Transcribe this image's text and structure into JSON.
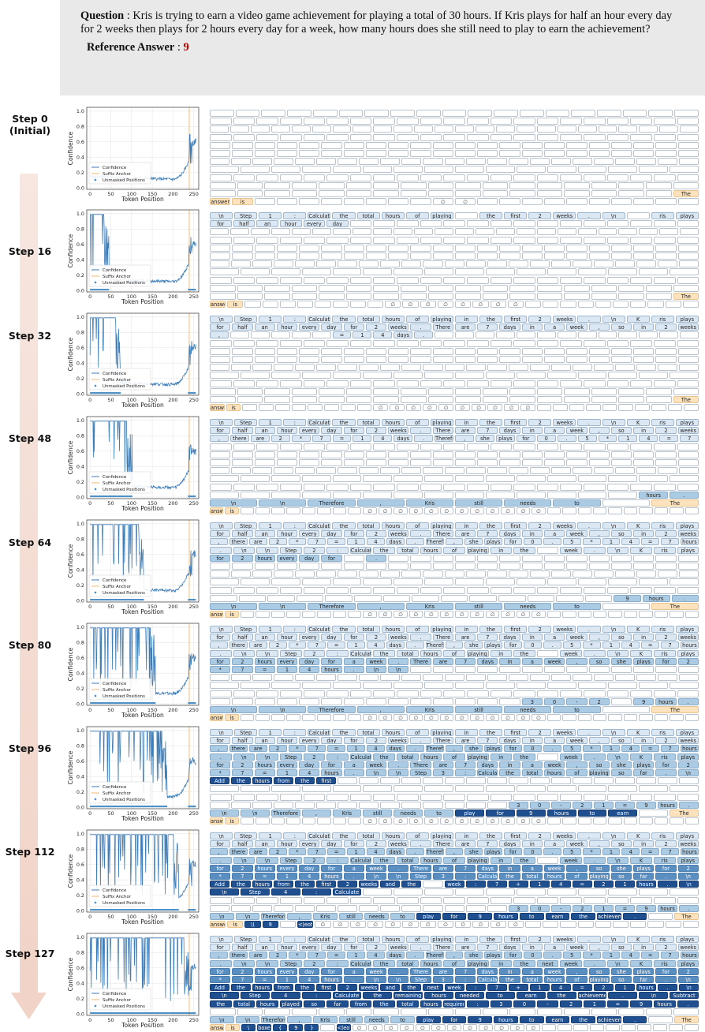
{
  "question": {
    "label": "Question",
    "text": "Kris is trying to earn a video game achievement  for playing a total of 30 hours. If Kris plays for half an hour every day for 2 weeks then plays for 2 hours every day for a week, how many hours does she still need to play to earn the achievement?",
    "reference_label": "Reference Answer",
    "reference_answer": "9"
  },
  "colors": {
    "confidence": "#3d7db8",
    "suffix_anchor": "#f2b774",
    "unmasked": "#4f90c6",
    "token_light": "#dbe7f2",
    "token_mid": "#aacbe3",
    "token_dark": "#1f4f8e",
    "anchor_token": "#fde3bd",
    "arrow": "#f3ddd4"
  },
  "axis": {
    "ylabel": "Confidence",
    "xlabel": "Token Position",
    "yticks": [
      "0.0",
      "0.2",
      "0.4",
      "0.6",
      "0.8",
      "1.0"
    ],
    "xticks": [
      "0",
      "50",
      "100",
      "150",
      "200",
      "250"
    ]
  },
  "legend": [
    "Confidence",
    "Suffix Anchor",
    "Unmasked Positions"
  ],
  "suffix": {
    "the": "The",
    "answer": "answer",
    "is": "is",
    "null": "∅"
  },
  "steps": [
    {
      "label": "Step 0\n(Initial)",
      "unmasked": 0,
      "committed_lines": [],
      "row10": [],
      "row11": []
    },
    {
      "label": "Step 16",
      "unmasked": 16,
      "committed_lines": [
        [
          "\\n",
          "Step",
          "1",
          ":",
          "Calculate",
          "the",
          "total",
          "hours",
          "of",
          "playing",
          "",
          "the",
          "first",
          "2",
          "weeks",
          ".",
          "\\n",
          "",
          "ris",
          "plays"
        ],
        [
          "for",
          "half",
          "an",
          "hour",
          "every",
          "day"
        ]
      ],
      "row10": [],
      "row11": []
    },
    {
      "label": "Step 32",
      "unmasked": 32,
      "committed_lines": [
        [
          "\\n",
          "Step",
          "1",
          ":",
          "Calculate",
          "the",
          "total",
          "hours",
          "of",
          "playing",
          "in",
          "the",
          "first",
          "2",
          "weeks",
          ".",
          "\\n",
          "K",
          "ris",
          "plays"
        ],
        [
          "for",
          "half",
          "an",
          "hour",
          "every",
          "day",
          "for",
          "2",
          "weeks",
          ".",
          "There",
          "are",
          "7",
          "days",
          "in",
          "a",
          "week",
          ",",
          "so",
          "in",
          "2",
          "weeks"
        ],
        [
          ",",
          "",
          "",
          "",
          "",
          "",
          "=",
          "1",
          "4",
          "days",
          "."
        ]
      ],
      "row10": [],
      "row11": []
    },
    {
      "label": "Step 48",
      "unmasked": 48,
      "committed_lines": [
        [
          "\\n",
          "Step",
          "1",
          ":",
          "Calculate",
          "the",
          "total",
          "hours",
          "of",
          "playing",
          "in",
          "the",
          "first",
          "2",
          "weeks",
          ".",
          "\\n",
          "K",
          "ris",
          "plays"
        ],
        [
          "for",
          "half",
          "an",
          "hour",
          "every",
          "day",
          "for",
          "2",
          "weeks",
          ".",
          "There",
          "are",
          "7",
          "days",
          "in",
          "a",
          "week",
          ",",
          "so",
          "in",
          "2",
          "weeks"
        ],
        [
          ",",
          "there",
          "are",
          "2",
          "*",
          "7",
          "=",
          "1",
          "4",
          "days",
          ".",
          "Therefore",
          ",",
          "she",
          "plays",
          "for",
          "0",
          ".",
          "5",
          "*",
          "1",
          "4",
          "=",
          "7"
        ]
      ],
      "row10": [
        "hours",
        "."
      ],
      "row11": [
        "\\n",
        "\\n",
        "Therefore",
        ",",
        "Kris",
        "still",
        "needs",
        "to"
      ]
    },
    {
      "label": "Step 64",
      "unmasked": 64,
      "committed_lines": [
        [
          "\\n",
          "Step",
          "1",
          ":",
          "Calculate",
          "the",
          "total",
          "hours",
          "of",
          "playing",
          "in",
          "the",
          "first",
          "2",
          "weeks",
          ".",
          "\\n",
          "K",
          "ris",
          "plays"
        ],
        [
          "for",
          "half",
          "an",
          "hour",
          "every",
          "day",
          "for",
          "2",
          "weeks",
          ".",
          "There",
          "are",
          "7",
          "days",
          "in",
          "a",
          "week",
          ",",
          "so",
          "in",
          "2",
          "weeks"
        ],
        [
          ",",
          "there",
          "are",
          "2",
          "*",
          "7",
          "=",
          "1",
          "4",
          "days",
          ".",
          "Therefore",
          ",",
          "she",
          "plays",
          "for",
          "0",
          ".",
          "5",
          "*",
          "1",
          "4",
          "=",
          "7",
          "hours"
        ],
        [
          ".",
          "\\n",
          "\\n",
          "Step",
          "2",
          ":",
          "Calculate",
          "the",
          "total",
          "hours",
          "of",
          "playing",
          "in",
          "the",
          "",
          "week",
          ".",
          "\\n",
          "K",
          "ris",
          "plays"
        ],
        [
          "for",
          "2",
          "hours",
          "every",
          "day",
          "for",
          "",
          "."
        ]
      ],
      "row10": [
        "9",
        "hours",
        "."
      ],
      "row11": [
        "\\n",
        "\\n",
        "Therefore",
        ",",
        "Kris",
        "still",
        "needs",
        "to"
      ]
    },
    {
      "label": "Step 80",
      "unmasked": 80,
      "committed_lines": [
        [
          "\\n",
          "Step",
          "1",
          ":",
          "Calculate",
          "the",
          "total",
          "hours",
          "of",
          "playing",
          "in",
          "the",
          "first",
          "2",
          "weeks",
          ".",
          "\\n",
          "K",
          "ris",
          "plays"
        ],
        [
          "for",
          "half",
          "an",
          "hour",
          "every",
          "day",
          "for",
          "2",
          "weeks",
          ".",
          "There",
          "are",
          "7",
          "days",
          "in",
          "a",
          "week",
          ",",
          "so",
          "in",
          "2",
          "weeks"
        ],
        [
          ",",
          "there",
          "are",
          "2",
          "*",
          "7",
          "=",
          "1",
          "4",
          "days",
          ".",
          "Therefore",
          ",",
          "she",
          "plays",
          "for",
          "0",
          ".",
          "5",
          "*",
          "1",
          "4",
          "=",
          "7",
          "hours"
        ],
        [
          ".",
          "\\n",
          "\\n",
          "Step",
          "2",
          ":",
          "Calculate",
          "the",
          "total",
          "hours",
          "of",
          "playing",
          "in",
          "the",
          "",
          "week",
          ".",
          "\\n",
          "K",
          "ris",
          "plays"
        ],
        [
          "for",
          "2",
          "hours",
          "every",
          "day",
          "for",
          "a",
          "week",
          ".",
          "There",
          "are",
          "7",
          "days",
          "in",
          "a",
          "week",
          ",",
          "so",
          "she",
          "plays",
          "for",
          "2"
        ],
        [
          "*",
          "7",
          "=",
          "1",
          "4",
          "hours",
          ".",
          "\\n",
          "\\n"
        ]
      ],
      "row10": [
        "3",
        "0",
        "-",
        "2",
        "",
        "9",
        "hours",
        "."
      ],
      "row11": [
        "\\n",
        "\\n",
        "Therefore",
        ",",
        "Kris",
        "still",
        "needs",
        "to"
      ]
    },
    {
      "label": "Step 96",
      "unmasked": 96,
      "committed_lines": [
        [
          "\\n",
          "Step",
          "1",
          ":",
          "Calculate",
          "the",
          "total",
          "hours",
          "of",
          "playing",
          "in",
          "the",
          "first",
          "2",
          "weeks",
          ".",
          "\\n",
          "K",
          "ris",
          "plays"
        ],
        [
          "for",
          "half",
          "an",
          "hour",
          "every",
          "day",
          "for",
          "2",
          "weeks",
          ".",
          "There",
          "are",
          "7",
          "days",
          "in",
          "a",
          "week",
          ",",
          "so",
          "in",
          "2",
          "weeks"
        ],
        [
          ",",
          "there",
          "are",
          "2",
          "*",
          "7",
          "=",
          "1",
          "4",
          "days",
          ".",
          "Therefore",
          ",",
          "she",
          "plays",
          "for",
          "0",
          ".",
          "5",
          "*",
          "1",
          "4",
          "=",
          "7",
          "hours"
        ],
        [
          ".",
          "\\n",
          "\\n",
          "Step",
          "2",
          ":",
          "Calculate",
          "the",
          "total",
          "hours",
          "of",
          "playing",
          "in",
          "the",
          "",
          "week",
          ".",
          "\\n",
          "K",
          "ris",
          "plays"
        ],
        [
          "for",
          "2",
          "hours",
          "every",
          "day",
          "for",
          "a",
          "week",
          ".",
          "There",
          "are",
          "7",
          "days",
          "in",
          "a",
          "week",
          ",",
          "so",
          "she",
          "plays",
          "for",
          "2"
        ],
        [
          "*",
          "7",
          "=",
          "1",
          "4",
          "hours",
          ".",
          "\\n",
          "\\n",
          "Step",
          "3",
          ":",
          "Calculate",
          "the",
          "total",
          "hours",
          "of",
          "playing",
          "so",
          "far",
          ".",
          "\\n"
        ],
        [
          "Add",
          "the",
          "hours",
          "from",
          "the",
          "first",
          ""
        ]
      ],
      "row10": [
        "3",
        "0",
        "-",
        "2",
        "1",
        "=",
        "9",
        "hours",
        "."
      ],
      "row11": [
        "\\n",
        "\\n",
        "Therefore",
        ",",
        "Kris",
        "still",
        "needs",
        "to",
        "play",
        "for",
        "9",
        "hours",
        "to",
        "earn"
      ]
    },
    {
      "label": "Step 112",
      "unmasked": 112,
      "committed_lines": [
        [
          "\\n",
          "Step",
          "1",
          ":",
          "Calculate",
          "the",
          "total",
          "hours",
          "of",
          "playing",
          "in",
          "the",
          "first",
          "2",
          "weeks",
          ".",
          "\\n",
          "K",
          "ris",
          "plays"
        ],
        [
          "for",
          "half",
          "an",
          "hour",
          "every",
          "day",
          "for",
          "2",
          "weeks",
          ".",
          "There",
          "are",
          "7",
          "days",
          "in",
          "a",
          "week",
          ",",
          "so",
          "in",
          "2",
          "weeks"
        ],
        [
          ",",
          "there",
          "are",
          "2",
          "*",
          "7",
          "=",
          "1",
          "4",
          "days",
          ".",
          "Therefore",
          ",",
          "she",
          "plays",
          "for",
          "0",
          ".",
          "5",
          "*",
          "1",
          "4",
          "=",
          "7",
          "hours"
        ],
        [
          ".",
          "\\n",
          "\\n",
          "Step",
          "2",
          ":",
          "Calculate",
          "the",
          "total",
          "hours",
          "of",
          "playing",
          "in",
          "the",
          "",
          "week",
          ".",
          "\\n",
          "K",
          "ris",
          "plays"
        ],
        [
          "for",
          "2",
          "hours",
          "every",
          "day",
          "for",
          "a",
          "week",
          ".",
          "There",
          "are",
          "7",
          "days",
          "in",
          "a",
          "week",
          ",",
          "so",
          "she",
          "plays",
          "for",
          "2"
        ],
        [
          "*",
          "7",
          "=",
          "1",
          "4",
          "hours",
          ".",
          "\\n",
          "\\n",
          "Step",
          "3",
          ":",
          "Calculate",
          "the",
          "total",
          "hours",
          "of",
          "playing",
          "so",
          "far",
          ".",
          "\\n"
        ],
        [
          "Add",
          "the",
          "hours",
          "from",
          "the",
          "first",
          "2",
          "weeks",
          "and",
          "the",
          "",
          "week",
          ":",
          "7",
          "+",
          "1",
          "4",
          "=",
          "2",
          "1",
          "hours",
          ".",
          "\\n"
        ],
        [
          "\\n",
          "Step",
          "4",
          ":",
          "Calculate"
        ]
      ],
      "row10": [
        "3",
        "0",
        "-",
        "2",
        "1",
        "=",
        "9",
        "hours",
        "."
      ],
      "row11": [
        "\\n",
        "\\n",
        "Therefore",
        ",",
        "Kris",
        "still",
        "needs",
        "to",
        "play",
        "for",
        "9",
        "hours",
        "to",
        "earn",
        "the",
        "achievement",
        "."
      ]
    },
    {
      "label": "Step 127",
      "unmasked": 127,
      "committed_lines": [
        [
          "\\n",
          "Step",
          "1",
          ":",
          "Calculate",
          "the",
          "total",
          "hours",
          "of",
          "playing",
          "in",
          "the",
          "first",
          "2",
          "weeks",
          ".",
          "\\n",
          "K",
          "ris",
          "plays"
        ],
        [
          "for",
          "half",
          "an",
          "hour",
          "every",
          "day",
          "for",
          "2",
          "weeks",
          ".",
          "There",
          "are",
          "7",
          "days",
          "in",
          "a",
          "week",
          ",",
          "so",
          "in",
          "2",
          "weeks"
        ],
        [
          ",",
          "there",
          "are",
          "2",
          "*",
          "7",
          "=",
          "1",
          "4",
          "days",
          ".",
          "Therefore",
          ",",
          "she",
          "plays",
          "for",
          "0",
          ".",
          "5",
          "*",
          "1",
          "4",
          "=",
          "7",
          "hours"
        ],
        [
          ".",
          "\\n",
          "\\n",
          "Step",
          "2",
          ":",
          "Calculate",
          "the",
          "total",
          "hours",
          "of",
          "playing",
          "in",
          "the",
          "next",
          "week",
          ".",
          "\\n",
          "K",
          "ris",
          "plays"
        ],
        [
          "for",
          "2",
          "hours",
          "every",
          "day",
          "for",
          "a",
          "week",
          ".",
          "There",
          "are",
          "7",
          "days",
          "in",
          "a",
          "week",
          ",",
          "so",
          "she",
          "plays",
          "for",
          "2"
        ],
        [
          "*",
          "7",
          "=",
          "1",
          "4",
          "hours",
          ".",
          "\\n",
          "\\n",
          "Step",
          "3",
          ":",
          "Calculate",
          "the",
          "total",
          "hours",
          "of",
          "playing",
          "so",
          "far",
          ".",
          "\\n"
        ],
        [
          "Add",
          "the",
          "hours",
          "from",
          "the",
          "first",
          "2",
          "weeks",
          "and",
          "the",
          "next",
          "week",
          ":",
          "7",
          "+",
          "1",
          "4",
          "=",
          "2",
          "1",
          "hours",
          ".",
          "\\n"
        ],
        [
          "\\n",
          "Step",
          "4",
          ":",
          "Calculate",
          "the",
          "remaining",
          "hours",
          "needed",
          "to",
          "earn",
          "the",
          "achievement",
          ".",
          "\\n",
          "Subtract"
        ],
        [
          "the",
          "total",
          "hours",
          "played",
          "so",
          "far",
          "from",
          "the",
          "total",
          "hours",
          "required",
          ":",
          "3",
          "0",
          "-",
          "2",
          "1",
          "=",
          "9",
          "hours",
          "."
        ]
      ],
      "row10": [],
      "row11": [
        "\\n",
        "\\n",
        "Therefore",
        ",",
        "Kris",
        "still",
        "needs",
        "to",
        "play",
        "for",
        "9",
        "hours",
        "to",
        "earn",
        "the",
        "achievement",
        "."
      ]
    }
  ],
  "tail_tokens": {
    "step112": [
      "\\(",
      "9",
      "",
      "<|eot_id|>"
    ],
    "step127": [
      "\\",
      "boxed",
      "{",
      "9",
      "}",
      "",
      "<|eot_id|>"
    ]
  },
  "null_counts": [
    2,
    8,
    10,
    12,
    12,
    12,
    12,
    12,
    12
  ]
}
